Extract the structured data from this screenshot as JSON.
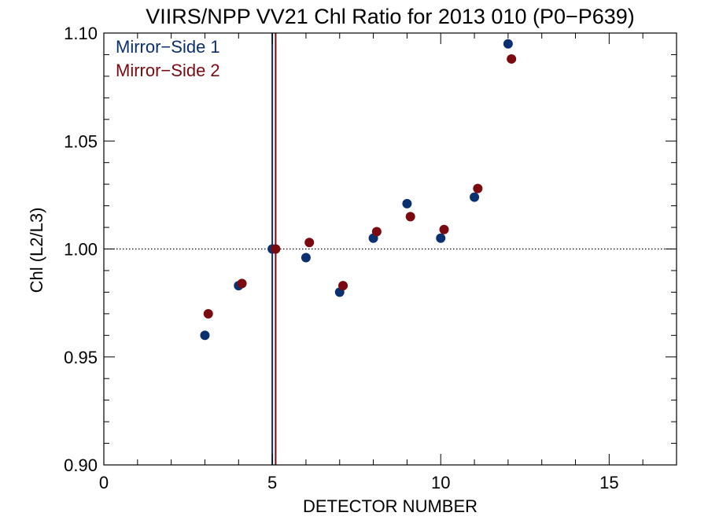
{
  "chart_data": {
    "type": "scatter",
    "title": "VIIRS/NPP VV21 Chl Ratio for 2013 010 (P0−P639)",
    "xlabel": "DETECTOR NUMBER",
    "ylabel": "Chl (L2/L3)",
    "xlim": [
      0,
      17
    ],
    "ylim": [
      0.9,
      1.1
    ],
    "xticks": [
      0,
      5,
      10,
      15
    ],
    "xtick_labels": [
      "0",
      "5",
      "10",
      "15"
    ],
    "yticks": [
      0.9,
      0.95,
      1.0,
      1.05,
      1.1
    ],
    "ytick_labels": [
      "0.90",
      "0.95",
      "1.00",
      "1.05",
      "1.10"
    ],
    "x_minor_step": 1,
    "y_minor_step": 0.01,
    "grid": false,
    "legend_position": "top-left",
    "reference_line": {
      "axis": "y",
      "value": 1.0,
      "style": "dotted",
      "color": "#000000"
    },
    "series": [
      {
        "name": "Mirror−Side 1",
        "color": "#0a3070",
        "x": [
          3,
          4,
          5,
          6,
          7,
          8,
          9,
          10,
          11,
          12
        ],
        "y": [
          0.96,
          0.983,
          1.0,
          0.996,
          0.98,
          1.005,
          1.021,
          1.005,
          1.024,
          1.095
        ],
        "vline_x": 5.0
      },
      {
        "name": "Mirror−Side 2",
        "color": "#7a0a10",
        "x": [
          3.1,
          4.1,
          5.1,
          6.1,
          7.1,
          8.1,
          9.1,
          10.1,
          11.1,
          12.1
        ],
        "y": [
          0.97,
          0.984,
          1.0,
          1.003,
          0.983,
          1.008,
          1.015,
          1.009,
          1.028,
          1.088
        ],
        "vline_x": 5.1
      }
    ]
  }
}
